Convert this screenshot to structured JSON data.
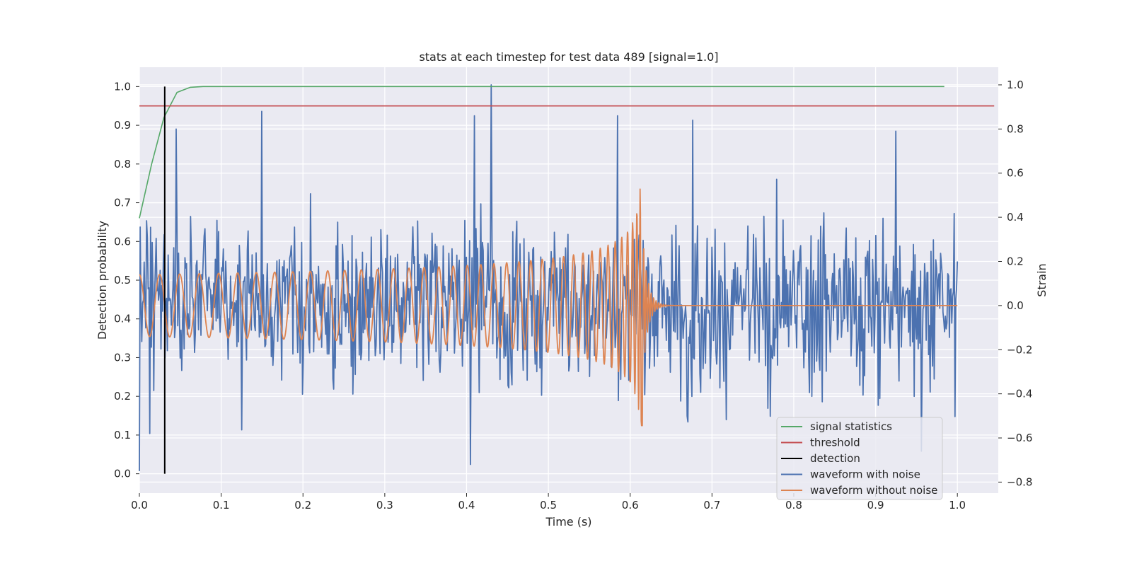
{
  "chart_data": {
    "type": "line",
    "title": "stats at each timestep for test data 489 [signal=1.0]",
    "xlabel": "Time (s)",
    "ylabel": "Detection probability",
    "y2label": "Strain",
    "xlim": [
      0.0,
      1.05
    ],
    "ylim": [
      -0.05,
      1.05
    ],
    "y2lim": [
      -0.85,
      1.08
    ],
    "xticks": [
      0.0,
      0.1,
      0.2,
      0.3,
      0.4,
      0.5,
      0.6,
      0.7,
      0.8,
      0.9,
      1.0
    ],
    "xtick_labels": [
      "0.0",
      "0.1",
      "0.2",
      "0.3",
      "0.4",
      "0.5",
      "0.6",
      "0.7",
      "0.8",
      "0.9",
      "1.0"
    ],
    "yticks": [
      0.0,
      0.1,
      0.2,
      0.3,
      0.4,
      0.5,
      0.6,
      0.7,
      0.8,
      0.9,
      1.0
    ],
    "ytick_labels": [
      "0.0",
      "0.1",
      "0.2",
      "0.3",
      "0.4",
      "0.5",
      "0.6",
      "0.7",
      "0.8",
      "0.9",
      "1.0"
    ],
    "y2ticks": [
      -0.8,
      -0.6,
      -0.4,
      -0.2,
      0.0,
      0.2,
      0.4,
      0.6,
      0.8,
      1.0
    ],
    "y2tick_labels": [
      "−0.8",
      "−0.6",
      "−0.4",
      "−0.2",
      "0.0",
      "0.2",
      "0.4",
      "0.6",
      "0.8",
      "1.0"
    ],
    "grid": true,
    "legend_position": "lower-right",
    "legend": [
      {
        "label": "signal statistics",
        "color": "#55a868"
      },
      {
        "label": "threshold",
        "color": "#c44e52"
      },
      {
        "label": "detection",
        "color": "#000000"
      },
      {
        "label": "waveform with noise",
        "color": "#4c72b0"
      },
      {
        "label": "waveform without noise",
        "color": "#dd8452"
      }
    ],
    "series": [
      {
        "name": "signal statistics",
        "axis": "left",
        "color": "#55a868",
        "x": [
          0.0,
          0.015,
          0.03,
          0.046,
          0.062,
          0.078,
          0.2,
          0.4,
          0.6,
          0.8,
          0.984
        ],
        "y": [
          0.66,
          0.8,
          0.92,
          0.985,
          0.998,
          1.0,
          1.0,
          1.0,
          1.0,
          1.0,
          1.0
        ]
      },
      {
        "name": "threshold",
        "axis": "left",
        "color": "#c44e52",
        "x": [
          0.0,
          1.045
        ],
        "y": [
          0.95,
          0.95
        ]
      },
      {
        "name": "detection",
        "axis": "left",
        "color": "#000000",
        "x": [
          0.031,
          0.031
        ],
        "y": [
          0.0,
          1.0
        ]
      }
    ],
    "waveform_with_noise": {
      "axis": "right",
      "color": "#4c72b0",
      "x_start": 0.0,
      "x_end": 1.0,
      "num_points": 1024,
      "random_seed": 489,
      "keypoints": [
        {
          "x": 0.0,
          "y": -0.75
        },
        {
          "x": 0.013,
          "y": -0.58
        },
        {
          "x": 0.045,
          "y": 0.8
        },
        {
          "x": 0.15,
          "y": 0.88
        },
        {
          "x": 0.41,
          "y": 0.86
        },
        {
          "x": 0.43,
          "y": 1.0
        },
        {
          "x": 0.405,
          "y": -0.72
        },
        {
          "x": 0.585,
          "y": 0.86
        },
        {
          "x": 0.676,
          "y": 0.84
        },
        {
          "x": 0.925,
          "y": 0.79
        },
        {
          "x": 0.956,
          "y": -0.66
        },
        {
          "x": 1.0,
          "y": 0.2
        }
      ]
    },
    "waveform_without_noise": {
      "axis": "right",
      "color": "#dd8452",
      "x_start": 0.0,
      "x_end": 1.0,
      "merger_time": 0.615,
      "peak_strain": 0.58,
      "initial_amplitude": 0.14,
      "initial_frequency_hz": 40,
      "final_value": 0.0
    }
  }
}
